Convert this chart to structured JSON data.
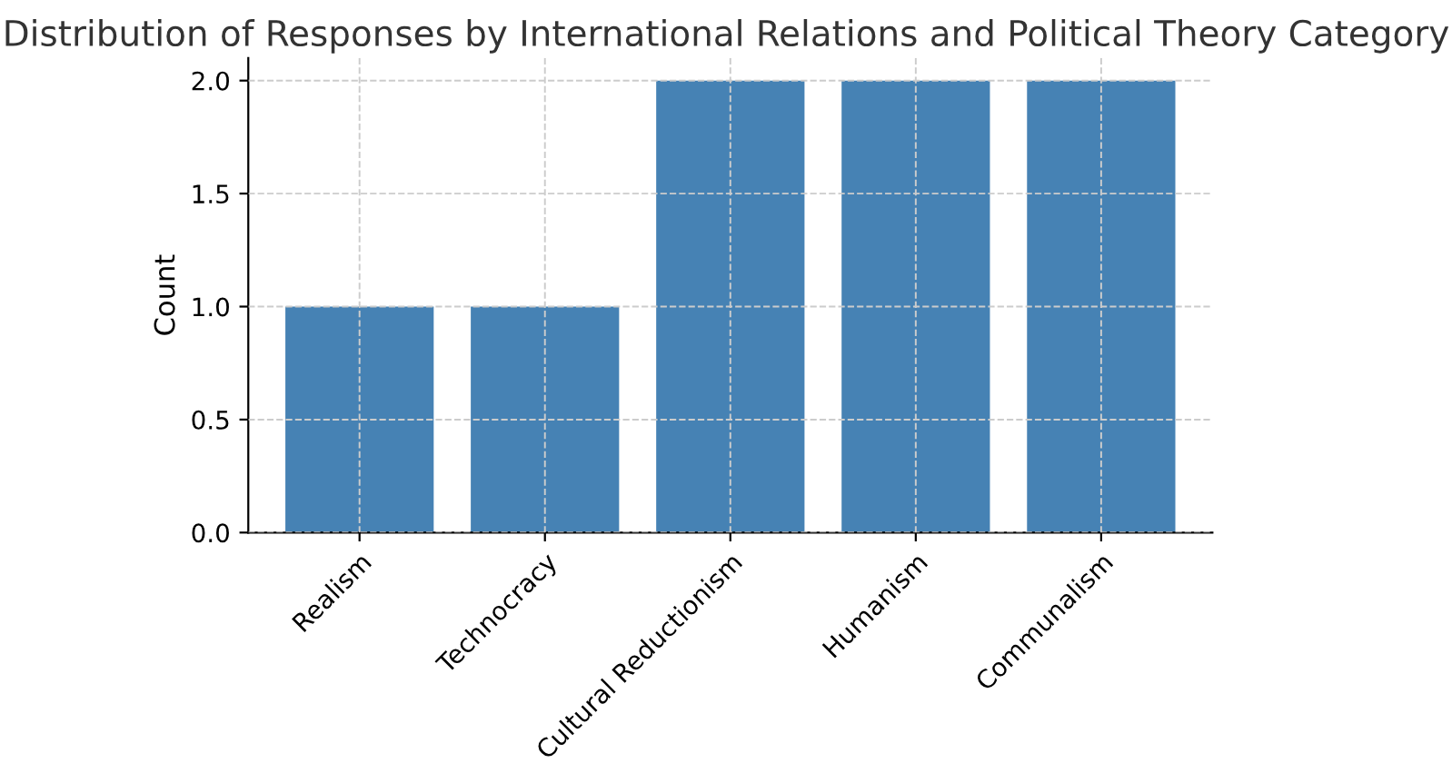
{
  "chart_data": {
    "type": "bar",
    "title": "Distribution of Responses by International Relations and Political Theory Category",
    "ylabel": "Count",
    "categories": [
      "Realism",
      "Technocracy",
      "Cultural Reductionism",
      "Humanism",
      "Communalism"
    ],
    "values": [
      1,
      1,
      2,
      2,
      2
    ],
    "color": "#4682b4",
    "ylim": [
      0,
      2.1
    ],
    "yticks": [
      {
        "value": 0,
        "label": "0.0"
      },
      {
        "value": 0.5,
        "label": "0.5"
      },
      {
        "value": 1,
        "label": "1.0"
      },
      {
        "value": 1.5,
        "label": "1.5"
      },
      {
        "value": 2,
        "label": "2.0"
      }
    ],
    "grid": true
  }
}
